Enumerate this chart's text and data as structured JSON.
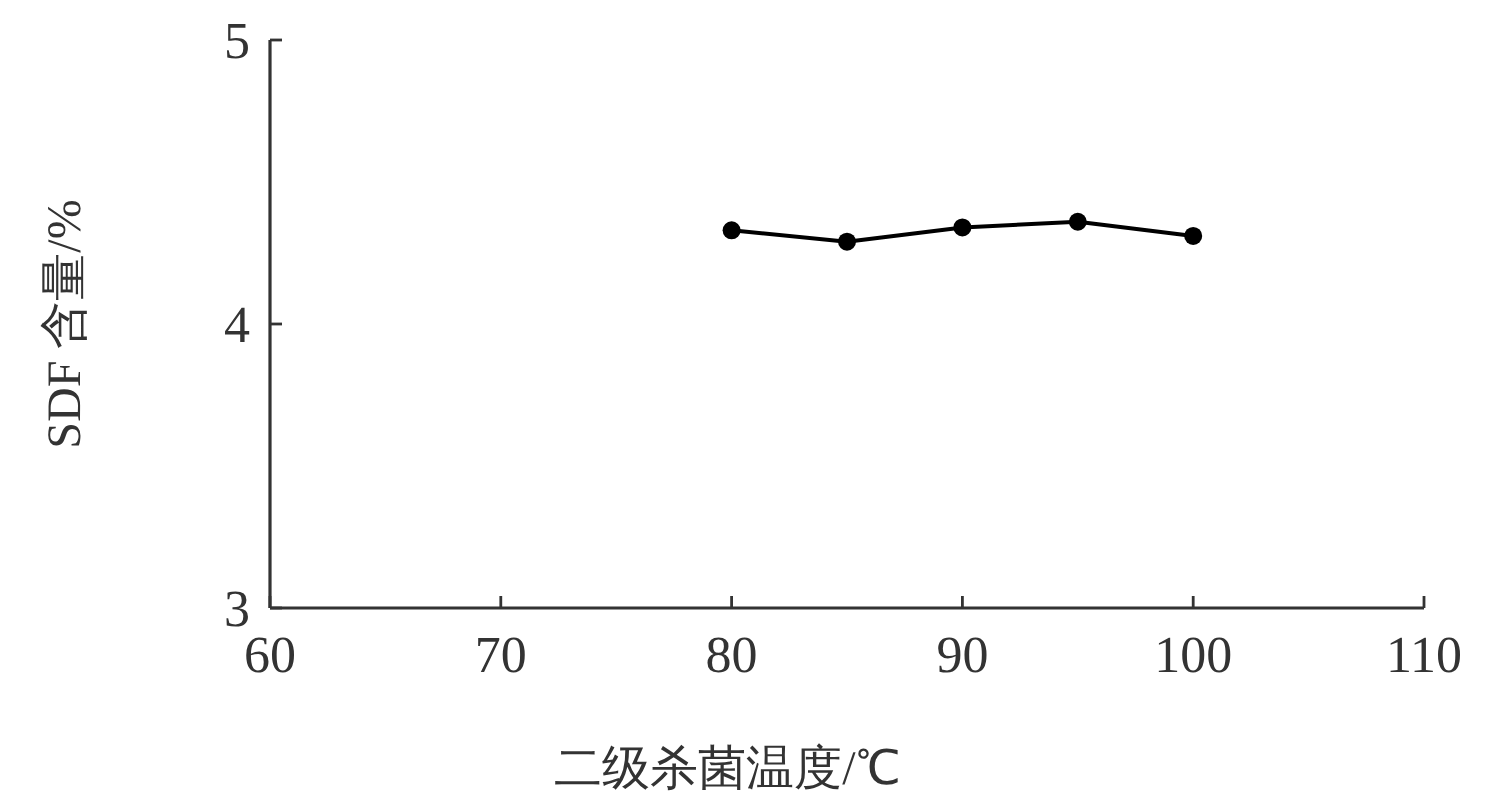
{
  "chart_data": {
    "type": "line",
    "xlabel": "二级杀菌温度/℃",
    "ylabel": "SDF 含量/%",
    "x": [
      80,
      85,
      90,
      95,
      100
    ],
    "series": [
      {
        "color": "#000000",
        "values": [
          4.33,
          4.29,
          4.34,
          4.36,
          4.31
        ]
      }
    ],
    "xlim": [
      60,
      110
    ],
    "xticks": [
      60,
      70,
      80,
      90,
      100,
      110
    ],
    "ylim": [
      3,
      5
    ],
    "yticks": [
      3,
      4,
      5
    ],
    "grid": false,
    "marker": "circle",
    "line_style": "solid"
  }
}
